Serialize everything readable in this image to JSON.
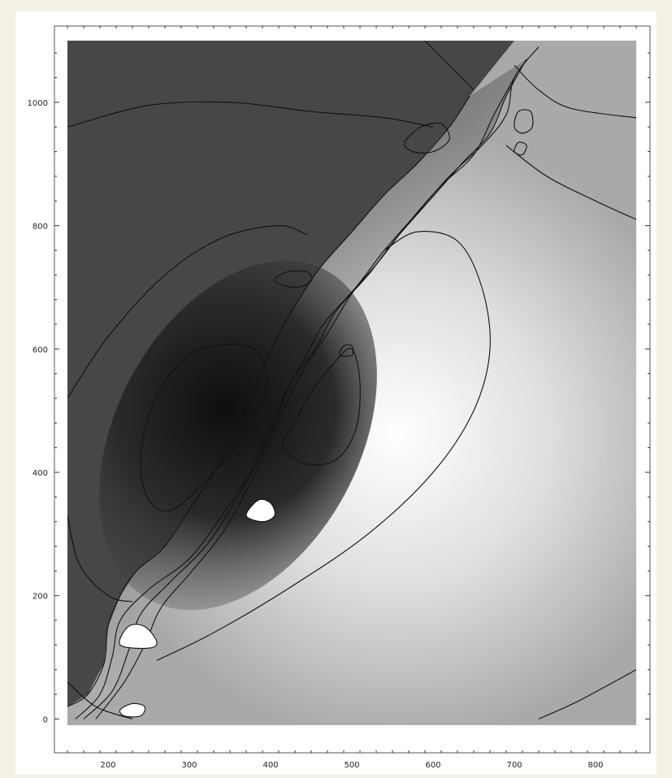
{
  "chart_data": {
    "type": "heatmap",
    "subtype": "contour",
    "colormap": "grayscale",
    "title": "",
    "xlabel": "",
    "ylabel": "",
    "xlim": [
      150,
      850
    ],
    "ylim": [
      -10,
      1100
    ],
    "x_ticks": [
      "200",
      "300",
      "400",
      "500",
      "600",
      "700",
      "800"
    ],
    "y_ticks": [
      "0",
      "200",
      "400",
      "600",
      "800",
      "1000"
    ],
    "grid": false,
    "legend": "none",
    "dark_maximum": [
      360,
      460
    ],
    "light_maximum": [
      475,
      450
    ],
    "contour_lines": [
      {
        "name": "dark-outer-arc",
        "points": [
          [
            150,
            960
          ],
          [
            250,
            995
          ],
          [
            350,
            1000
          ],
          [
            450,
            985
          ],
          [
            540,
            975
          ],
          [
            600,
            960
          ]
        ]
      },
      {
        "name": "dark-middle-arc",
        "points": [
          [
            150,
            520
          ],
          [
            200,
            620
          ],
          [
            270,
            720
          ],
          [
            340,
            780
          ],
          [
            410,
            800
          ],
          [
            445,
            785
          ]
        ]
      },
      {
        "name": "dark-inner-closed",
        "closed": true,
        "points": [
          [
            240,
            420
          ],
          [
            255,
            510
          ],
          [
            290,
            580
          ],
          [
            330,
            605
          ],
          [
            380,
            600
          ],
          [
            395,
            540
          ],
          [
            365,
            460
          ],
          [
            330,
            400
          ],
          [
            280,
            340
          ],
          [
            250,
            355
          ]
        ]
      },
      {
        "name": "dark-lower-left-arc",
        "points": [
          [
            150,
            330
          ],
          [
            165,
            250
          ],
          [
            200,
            200
          ],
          [
            230,
            190
          ]
        ]
      },
      {
        "name": "light-outer-arc",
        "points": [
          [
            260,
            95
          ],
          [
            330,
            140
          ],
          [
            420,
            210
          ],
          [
            520,
            300
          ],
          [
            600,
            400
          ],
          [
            650,
            500
          ],
          [
            670,
            600
          ],
          [
            660,
            700
          ],
          [
            630,
            775
          ],
          [
            580,
            790
          ],
          [
            540,
            760
          ]
        ]
      },
      {
        "name": "light-inner-closed",
        "closed": true,
        "points": [
          [
            425,
            470
          ],
          [
            450,
            530
          ],
          [
            480,
            580
          ],
          [
            500,
            600
          ],
          [
            510,
            545
          ],
          [
            505,
            470
          ],
          [
            480,
            420
          ],
          [
            440,
            415
          ],
          [
            415,
            445
          ]
        ]
      },
      {
        "name": "light-corner-upper-right",
        "points": [
          [
            690,
            930
          ],
          [
            740,
            880
          ],
          [
            800,
            840
          ],
          [
            850,
            810
          ]
        ]
      },
      {
        "name": "light-corner-lower-right",
        "points": [
          [
            730,
            0
          ],
          [
            780,
            30
          ],
          [
            850,
            80
          ]
        ]
      },
      {
        "name": "top-right-arc",
        "points": [
          [
            700,
            1060
          ],
          [
            730,
            1020
          ],
          [
            770,
            990
          ],
          [
            850,
            975
          ]
        ]
      },
      {
        "name": "top-left-arc",
        "points": [
          [
            590,
            1100
          ],
          [
            620,
            1060
          ],
          [
            650,
            1020
          ]
        ]
      },
      {
        "name": "band-1",
        "points": [
          [
            160,
            0
          ],
          [
            190,
            40
          ],
          [
            205,
            100
          ],
          [
            215,
            160
          ],
          [
            250,
            210
          ],
          [
            300,
            260
          ],
          [
            340,
            330
          ],
          [
            375,
            400
          ],
          [
            395,
            460
          ],
          [
            415,
            520
          ],
          [
            440,
            580
          ],
          [
            465,
            640
          ],
          [
            505,
            700
          ],
          [
            540,
            760
          ],
          [
            580,
            820
          ],
          [
            620,
            880
          ],
          [
            660,
            930
          ],
          [
            690,
            980
          ],
          [
            700,
            1040
          ],
          [
            730,
            1090
          ]
        ]
      },
      {
        "name": "band-2",
        "points": [
          [
            170,
            0
          ],
          [
            205,
            45
          ],
          [
            225,
            110
          ],
          [
            240,
            170
          ],
          [
            275,
            220
          ],
          [
            320,
            280
          ],
          [
            355,
            350
          ],
          [
            385,
            420
          ],
          [
            405,
            480
          ],
          [
            425,
            545
          ],
          [
            455,
            600
          ],
          [
            480,
            660
          ],
          [
            520,
            720
          ],
          [
            555,
            780
          ],
          [
            595,
            840
          ],
          [
            635,
            900
          ],
          [
            670,
            950
          ],
          [
            690,
            1010
          ],
          [
            715,
            1070
          ]
        ]
      },
      {
        "name": "band-3",
        "points": [
          [
            185,
            0
          ],
          [
            220,
            60
          ],
          [
            245,
            120
          ],
          [
            265,
            180
          ],
          [
            300,
            235
          ],
          [
            340,
            300
          ],
          [
            370,
            370
          ],
          [
            395,
            440
          ],
          [
            415,
            500
          ],
          [
            440,
            565
          ],
          [
            470,
            625
          ],
          [
            500,
            690
          ],
          [
            535,
            745
          ],
          [
            570,
            805
          ],
          [
            610,
            865
          ],
          [
            650,
            915
          ],
          [
            675,
            980
          ],
          [
            700,
            1040
          ]
        ]
      },
      {
        "name": "band-4",
        "points": [
          [
            150,
            20
          ],
          [
            175,
            40
          ],
          [
            195,
            90
          ],
          [
            200,
            150
          ],
          [
            215,
            200
          ],
          [
            235,
            240
          ],
          [
            270,
            280
          ],
          [
            305,
            350
          ],
          [
            340,
            420
          ],
          [
            365,
            490
          ],
          [
            385,
            550
          ],
          [
            405,
            610
          ],
          [
            430,
            670
          ],
          [
            460,
            730
          ],
          [
            500,
            790
          ],
          [
            540,
            850
          ],
          [
            580,
            900
          ],
          [
            620,
            960
          ],
          [
            645,
            1010
          ]
        ]
      },
      {
        "name": "band-5",
        "points": [
          [
            150,
            60
          ],
          [
            185,
            20
          ],
          [
            230,
            0
          ]
        ]
      },
      {
        "name": "blob-lower-1",
        "closed": true,
        "points": [
          [
            215,
            120
          ],
          [
            225,
            150
          ],
          [
            245,
            150
          ],
          [
            260,
            125
          ],
          [
            250,
            115
          ]
        ]
      },
      {
        "name": "blob-lower-2",
        "closed": true,
        "points": [
          [
            370,
            330
          ],
          [
            385,
            355
          ],
          [
            400,
            350
          ],
          [
            405,
            330
          ],
          [
            390,
            320
          ]
        ]
      },
      {
        "name": "blob-lower-3",
        "closed": true,
        "points": [
          [
            215,
            15
          ],
          [
            230,
            25
          ],
          [
            245,
            20
          ],
          [
            240,
            5
          ],
          [
            220,
            5
          ]
        ]
      },
      {
        "name": "blob-upper-1",
        "closed": true,
        "points": [
          [
            565,
            935
          ],
          [
            585,
            960
          ],
          [
            610,
            965
          ],
          [
            620,
            940
          ],
          [
            600,
            920
          ],
          [
            575,
            920
          ]
        ]
      },
      {
        "name": "blob-upper-2",
        "closed": true,
        "points": [
          [
            700,
            960
          ],
          [
            705,
            985
          ],
          [
            720,
            985
          ],
          [
            722,
            960
          ],
          [
            710,
            950
          ]
        ]
      },
      {
        "name": "blob-upper-3",
        "closed": true,
        "points": [
          [
            700,
            920
          ],
          [
            705,
            935
          ],
          [
            715,
            930
          ],
          [
            710,
            915
          ]
        ]
      },
      {
        "name": "blob-mid-1",
        "closed": true,
        "points": [
          [
            405,
            710
          ],
          [
            420,
            725
          ],
          [
            445,
            725
          ],
          [
            450,
            710
          ],
          [
            430,
            700
          ]
        ]
      },
      {
        "name": "blob-mid-2",
        "closed": true,
        "points": [
          [
            485,
            590
          ],
          [
            490,
            605
          ],
          [
            500,
            605
          ],
          [
            500,
            590
          ]
        ]
      }
    ]
  }
}
